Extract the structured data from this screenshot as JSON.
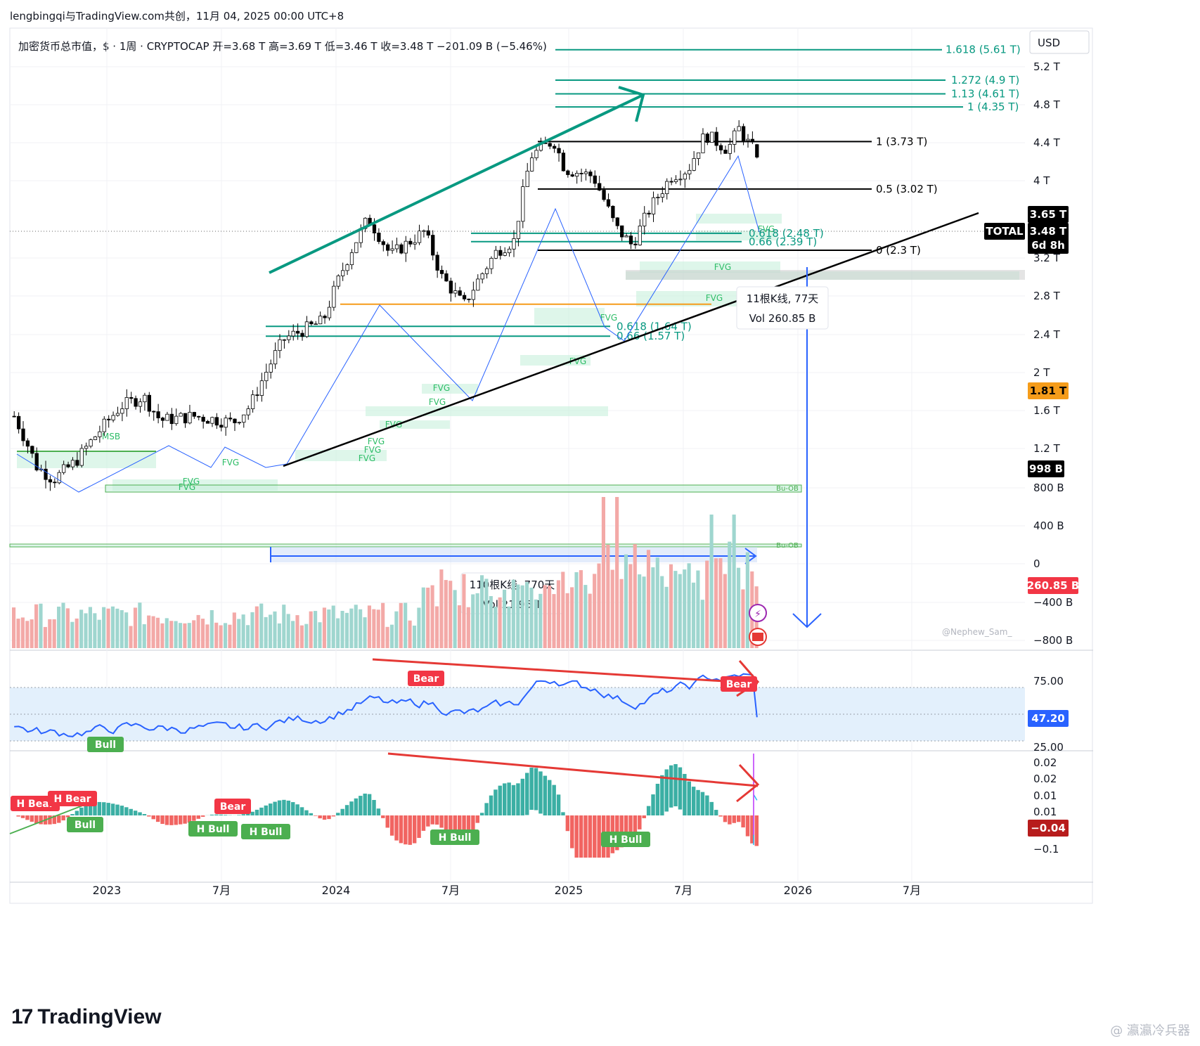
{
  "header": {
    "title": "lengbingqi与TradingView.com共创，11月 04, 2025 00:00 UTC+8",
    "symbol_line": "加密货币总市值，$ · 1周 · CRYPTOCAP  开=3.68 T  高=3.69 T  低=3.46 T  收=3.48 T  −201.09 B (−5.46%)"
  },
  "branding": {
    "logo_text": "TradingView",
    "watermark": "@ 瀛瀛冷兵器",
    "author_tag": "@Nephew_Sam_"
  },
  "colors": {
    "up": "#26a69a",
    "down": "#ef5350",
    "fib": "#089981",
    "trend": "#000000",
    "arrow": "#2962ff",
    "orange": "#f59c1a",
    "rsi": "#2962ff"
  },
  "chart_data": [
    {
      "type": "candlestick",
      "name": "price",
      "currency_label": "USD",
      "y_ticks": [
        "5.2 T",
        "4.8 T",
        "4.4 T",
        "4 T",
        "3.2 T",
        "2.8 T",
        "2.4 T",
        "2 T",
        "1.6 T",
        "1.2 T",
        "800 B"
      ],
      "x_ticks": [
        "2023",
        "7月",
        "2024",
        "7月",
        "2025",
        "7月",
        "2026",
        "7月"
      ],
      "price_labels": [
        {
          "text": "3.65 T",
          "bg": "#000000",
          "color": "#ffffff"
        },
        {
          "text": "3.48 T",
          "bg": "#000000",
          "color": "#ffffff"
        },
        {
          "text": "6d 8h",
          "bg": "#000000",
          "color": "#ffffff"
        },
        {
          "text": "TOTAL",
          "bg": "#000000",
          "color": "#ffffff"
        },
        {
          "text": "1.81 T",
          "bg": "#f59c1a",
          "color": "#000000"
        },
        {
          "text": "998 B",
          "bg": "#000000",
          "color": "#ffffff"
        }
      ],
      "fib_levels": [
        {
          "label": "1.618 (5.61 T)",
          "value": 5.61
        },
        {
          "label": "1.272 (4.9 T)",
          "value": 4.9
        },
        {
          "label": "1.13 (4.61 T)",
          "value": 4.61
        },
        {
          "label": "1 (4.35 T)",
          "value": 4.35
        },
        {
          "label": "1 (3.73 T)",
          "value": 3.73
        },
        {
          "label": "0.5 (3.02 T)",
          "value": 3.02
        },
        {
          "label": "0.618 (2.48 T)",
          "value": 2.48
        },
        {
          "label": "0.66 (2.39 T)",
          "value": 2.39
        },
        {
          "label": "0 (2.3 T)",
          "value": 2.3
        },
        {
          "label": "0.618 (1.64 T)",
          "value": 1.64
        },
        {
          "label": "0.66 (1.57 T)",
          "value": 1.57
        }
      ],
      "zone_labels": [
        "FVG",
        "MSB",
        "Bu-OB"
      ],
      "measure_boxes": [
        {
          "line1": "11根K线, 77天",
          "line2": "Vol 260.85 B"
        },
        {
          "line1": "110根K线, 770天",
          "line2": "Vol 21.95 T"
        }
      ],
      "ohlc_last": {
        "open": 3.68,
        "high": 3.69,
        "low": 3.46,
        "close": 3.48
      }
    },
    {
      "type": "bar",
      "name": "volume",
      "y_ticks": [
        "400 B",
        "0",
        "−400 B",
        "−800 B"
      ],
      "last_label": "260.85 B"
    },
    {
      "type": "line",
      "name": "rsi",
      "y_ticks": [
        "75.00",
        "25.00"
      ],
      "last_label": "47.20",
      "range": [
        25,
        75
      ],
      "signals": [
        {
          "text": "Bear",
          "kind": "bear"
        },
        {
          "text": "Bear",
          "kind": "bear"
        },
        {
          "text": "Bull",
          "kind": "bull"
        }
      ]
    },
    {
      "type": "bar",
      "name": "macd",
      "y_ticks": [
        "0.02",
        "0.02",
        "0.01",
        "0.01",
        "−0.1"
      ],
      "last_label": "−0.04",
      "signals": [
        {
          "text": "H Bear",
          "kind": "bear"
        },
        {
          "text": "H Bear",
          "kind": "bear"
        },
        {
          "text": "Bull",
          "kind": "bull"
        },
        {
          "text": "Bear",
          "kind": "bear"
        },
        {
          "text": "H Bull",
          "kind": "bull"
        },
        {
          "text": "H Bull",
          "kind": "bull"
        },
        {
          "text": "H Bull",
          "kind": "bull"
        },
        {
          "text": "H Bull",
          "kind": "bull"
        }
      ]
    }
  ]
}
